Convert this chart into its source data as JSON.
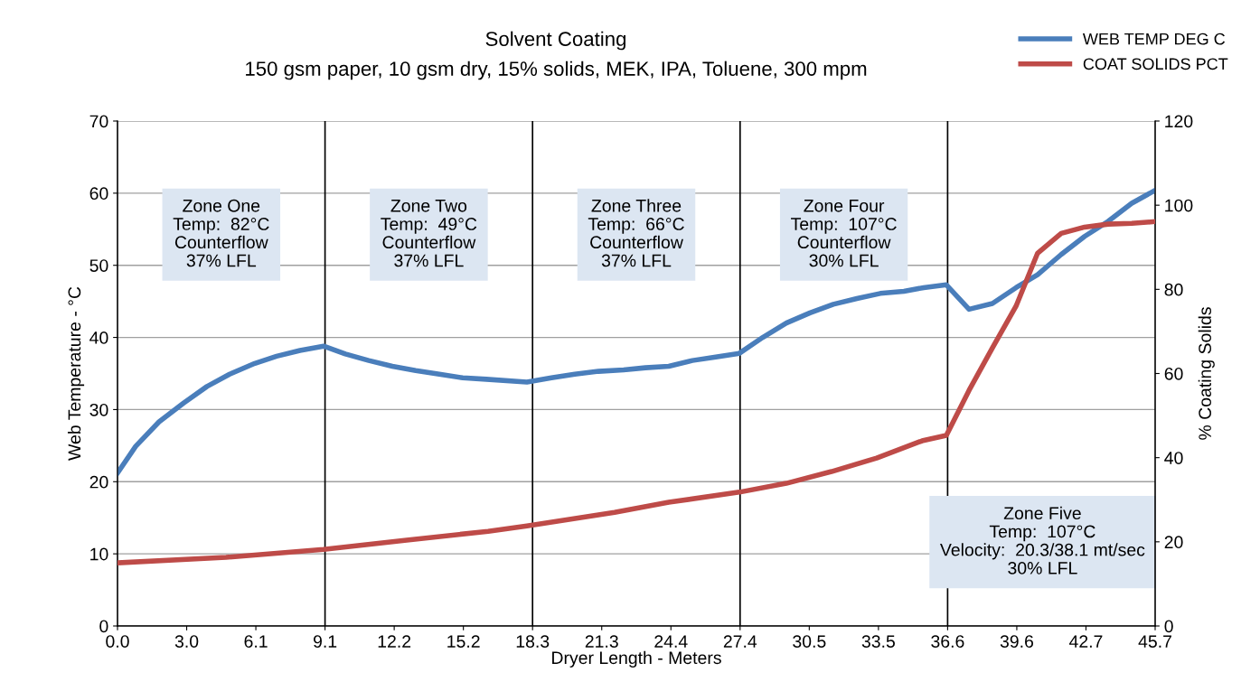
{
  "chart_data": {
    "type": "line",
    "title": "Solvent Coating",
    "subtitle": "150 gsm paper, 10 gsm dry, 15% solids, MEK, IPA, Toluene, 300 mpm",
    "xlabel": "Dryer Length - Meters",
    "ylabel": "Web Temperature - °C",
    "y2label": "% Coating Solids",
    "xlim": [
      0,
      45.72
    ],
    "xticks": [
      {
        "value": 0,
        "label": "0.0"
      },
      {
        "value": 3.048,
        "label": "3.0"
      },
      {
        "value": 6.096,
        "label": "6.1"
      },
      {
        "value": 9.144,
        "label": "9.1"
      },
      {
        "value": 12.192,
        "label": "12.2"
      },
      {
        "value": 15.24,
        "label": "15.2"
      },
      {
        "value": 18.288,
        "label": "18.3"
      },
      {
        "value": 21.336,
        "label": "21.3"
      },
      {
        "value": 24.384,
        "label": "24.4"
      },
      {
        "value": 27.432,
        "label": "27.4"
      },
      {
        "value": 30.48,
        "label": "30.5"
      },
      {
        "value": 33.528,
        "label": "33.5"
      },
      {
        "value": 36.576,
        "label": "36.6"
      },
      {
        "value": 39.624,
        "label": "39.6"
      },
      {
        "value": 42.672,
        "label": "42.7"
      },
      {
        "value": 45.72,
        "label": "45.7"
      }
    ],
    "ylim": [
      0,
      70
    ],
    "yticks": [
      0,
      10,
      20,
      30,
      40,
      50,
      60,
      70
    ],
    "y2lim": [
      0,
      120
    ],
    "y2ticks": [
      0,
      20,
      40,
      60,
      80,
      100,
      120
    ],
    "grid": "y",
    "legend": "top right",
    "series": [
      {
        "name": "WEB TEMP DEG C",
        "color": "#4a7ebb",
        "x": [
          0,
          0.8,
          1.83,
          2.91,
          3.94,
          4.94,
          6.05,
          7.01,
          8.04,
          9.08,
          10.04,
          11.07,
          12.11,
          13.14,
          14.18,
          15.21,
          16.25,
          18.04,
          19.12,
          20.15,
          21.19,
          22.3,
          23.26,
          24.29,
          25.33,
          26.36,
          27.4,
          28.43,
          29.47,
          30.51,
          31.54,
          32.58,
          33.61,
          34.65,
          35.52,
          36.52,
          37.52,
          38.55,
          39.59,
          40.54,
          41.58,
          42.61,
          43.65,
          44.69,
          45.72
        ],
        "values": [
          21.2,
          24.9,
          28.3,
          30.9,
          33.2,
          34.9,
          36.4,
          37.4,
          38.2,
          38.8,
          37.7,
          36.8,
          36.0,
          35.4,
          34.9,
          34.4,
          34.2,
          33.8,
          34.4,
          34.9,
          35.3,
          35.5,
          35.8,
          36.0,
          36.8,
          37.3,
          37.8,
          40.0,
          42.0,
          43.4,
          44.6,
          45.4,
          46.1,
          46.4,
          46.9,
          47.3,
          43.9,
          44.7,
          46.9,
          48.7,
          51.5,
          54.0,
          56.1,
          58.6,
          60.4
        ]
      },
      {
        "name": "COAT SOLIDS PCT",
        "color": "#be4b48",
        "axis": "y2",
        "x": [
          0,
          4.78,
          9.08,
          12.74,
          16.33,
          18.04,
          21.9,
          24.29,
          27.4,
          29.47,
          31.46,
          33.45,
          35.45,
          36.52,
          37.52,
          38.55,
          39.59,
          40.54,
          41.58,
          42.61,
          43.65,
          44.69,
          45.72
        ],
        "values": [
          15.0,
          16.3,
          18.2,
          20.4,
          22.5,
          23.8,
          27.0,
          29.4,
          31.8,
          33.9,
          36.7,
          39.9,
          44.0,
          45.3,
          56.0,
          66.1,
          76.0,
          88.6,
          93.3,
          94.8,
          95.5,
          95.7,
          96.1
        ]
      }
    ],
    "ref_lines": [
      {
        "axis": "x",
        "value": 9.144,
        "color": "#000000"
      },
      {
        "axis": "x",
        "value": 18.288,
        "color": "#000000"
      },
      {
        "axis": "x",
        "value": 27.432,
        "color": "#000000"
      },
      {
        "axis": "x",
        "value": 36.576,
        "color": "#000000"
      }
    ],
    "annotations": [
      "Zone One\nTemp:  82°C\nCounterflow\n37% LFL",
      "Zone Two\nTemp:  49°C\nCounterflow\n37% LFL",
      "Zone Three\nTemp:  66°C\nCounterflow\n37% LFL",
      "Zone Four\nTemp:  107°C\nCounterflow\n30% LFL",
      "Zone Five\nTemp:  107°C\nVelocity:  20.3/38.1 mt/sec\n30% LFL"
    ]
  }
}
